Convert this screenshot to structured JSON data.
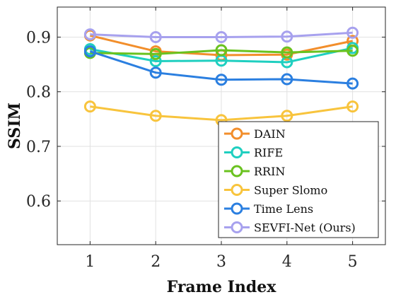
{
  "chart_data": {
    "type": "line",
    "xlabel": "Frame Index",
    "ylabel": "SSIM",
    "x": [
      1,
      2,
      3,
      4,
      5
    ],
    "xlim": [
      0.5,
      5.5
    ],
    "ylim": [
      0.52,
      0.955
    ],
    "xticks": [
      "1",
      "2",
      "3",
      "4",
      "5"
    ],
    "yticks": [
      {
        "value": 0.6,
        "label": "0.6"
      },
      {
        "value": 0.7,
        "label": "0.7"
      },
      {
        "value": 0.8,
        "label": "0.8"
      },
      {
        "value": 0.9,
        "label": "0.9"
      }
    ],
    "grid": true,
    "legend_position": "bottom-right",
    "marker": "open-circle",
    "series": [
      {
        "name": "DAIN",
        "color": "#f28e2b",
        "values": [
          0.903,
          0.874,
          0.867,
          0.868,
          0.893
        ]
      },
      {
        "name": "RIFE",
        "color": "#1fcfc0",
        "values": [
          0.878,
          0.856,
          0.857,
          0.854,
          0.88
        ]
      },
      {
        "name": "RRIN",
        "color": "#6ac21f",
        "values": [
          0.871,
          0.869,
          0.876,
          0.872,
          0.875
        ]
      },
      {
        "name": "Super Slomo",
        "color": "#f8c43d",
        "values": [
          0.773,
          0.756,
          0.748,
          0.756,
          0.773
        ]
      },
      {
        "name": "Time Lens",
        "color": "#2b7fe0",
        "values": [
          0.874,
          0.835,
          0.822,
          0.823,
          0.815
        ]
      },
      {
        "name": "SEVFI-Net (Ours)",
        "color": "#a7a1ee",
        "values": [
          0.905,
          0.9,
          0.9,
          0.901,
          0.908
        ]
      }
    ]
  }
}
